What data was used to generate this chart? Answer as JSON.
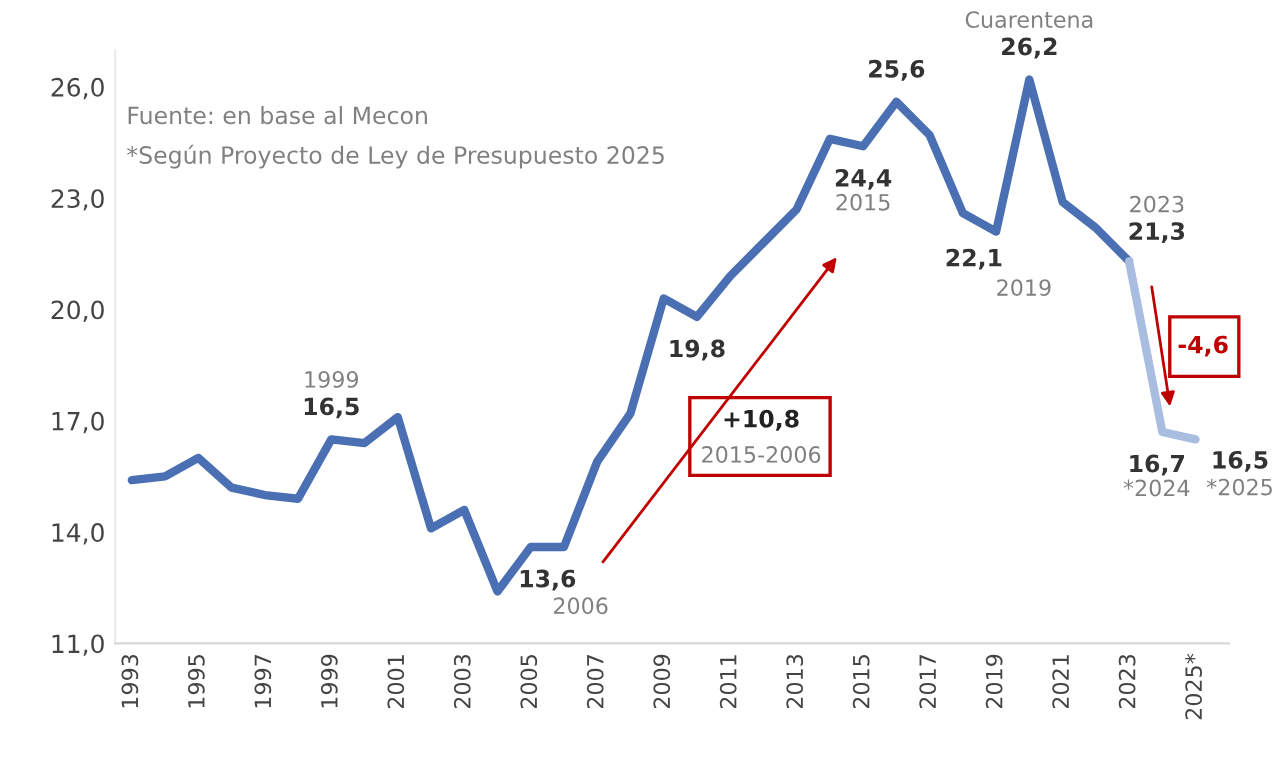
{
  "chart_data": {
    "type": "line",
    "x": [
      1993,
      1994,
      1995,
      1996,
      1997,
      1998,
      1999,
      2000,
      2001,
      2002,
      2003,
      2004,
      2005,
      2006,
      2007,
      2008,
      2009,
      2010,
      2011,
      2012,
      2013,
      2014,
      2015,
      2016,
      2017,
      2018,
      2019,
      2020,
      2021,
      2022,
      2023,
      2024,
      2025
    ],
    "series": [
      {
        "color": "#4a6fb3",
        "values": [
          15.4,
          15.5,
          16.0,
          15.2,
          15.0,
          14.9,
          16.5,
          16.4,
          17.1,
          14.1,
          14.6,
          12.4,
          13.6,
          13.6,
          15.9,
          17.2,
          20.3,
          19.8,
          20.9,
          21.8,
          22.7,
          24.6,
          24.4,
          25.6,
          24.7,
          22.6,
          22.1,
          26.2,
          22.9,
          22.2,
          21.3,
          null,
          null
        ],
        "value_labels": [
          null,
          null,
          null,
          null,
          null,
          null,
          "16,5",
          null,
          null,
          null,
          null,
          null,
          null,
          "13,6",
          null,
          null,
          null,
          "19,8",
          null,
          null,
          null,
          null,
          "24,4",
          "25,6",
          null,
          null,
          "22,1",
          "26,2",
          null,
          null,
          "21,3",
          null,
          null
        ]
      },
      {
        "color": "#a9bde0",
        "values": [
          null,
          null,
          null,
          null,
          null,
          null,
          null,
          null,
          null,
          null,
          null,
          null,
          null,
          null,
          null,
          null,
          null,
          null,
          null,
          null,
          null,
          null,
          null,
          null,
          null,
          null,
          null,
          null,
          null,
          null,
          21.3,
          16.7,
          16.5
        ],
        "value_labels": [
          null,
          null,
          null,
          null,
          null,
          null,
          null,
          null,
          null,
          null,
          null,
          null,
          null,
          null,
          null,
          null,
          null,
          null,
          null,
          null,
          null,
          null,
          null,
          null,
          null,
          null,
          null,
          null,
          null,
          null,
          null,
          "16,7",
          "16,5"
        ]
      }
    ],
    "xlim": [
      1992.5,
      2026
    ],
    "xticks": [
      1993,
      1995,
      1997,
      1999,
      2001,
      2003,
      2005,
      2007,
      2009,
      2011,
      2013,
      2015,
      2017,
      2019,
      2021,
      2023,
      {
        "value": 2025,
        "label": "2025*"
      }
    ],
    "ylim": [
      11,
      27
    ],
    "yticks": [
      {
        "value": 11,
        "label": "11,0"
      },
      {
        "value": 14,
        "label": "14,0"
      },
      {
        "value": 17,
        "label": "17,0"
      },
      {
        "value": 20,
        "label": "20,0"
      },
      {
        "value": 23,
        "label": "23,0"
      },
      {
        "value": 26,
        "label": "26,0"
      }
    ],
    "grid": false,
    "legend": false,
    "marker": "none",
    "line_style": "solid",
    "annotations": [
      "Fuente: en base al Mecon",
      "*Según Proyecto de Ley de Presupuesto 2025",
      {
        "text": "1999",
        "x": 1999,
        "y": 16.5
      },
      {
        "text": "2006",
        "x": 2006,
        "y": 13.6
      },
      {
        "text": "2015",
        "x": 2015,
        "y": 24.4
      },
      {
        "text": "2019",
        "x": 2019,
        "y": 22.1
      },
      {
        "text": "Cuarentena",
        "x": 2020,
        "y": 26.2
      },
      {
        "text": "2023",
        "x": 2023,
        "y": 21.3
      },
      {
        "text": "*2024",
        "x": 2024,
        "y": 16.7
      },
      {
        "text": "*2025",
        "x": 2025,
        "y": 16.5
      },
      "+10,8",
      "2015-2006",
      "-4,6"
    ]
  }
}
